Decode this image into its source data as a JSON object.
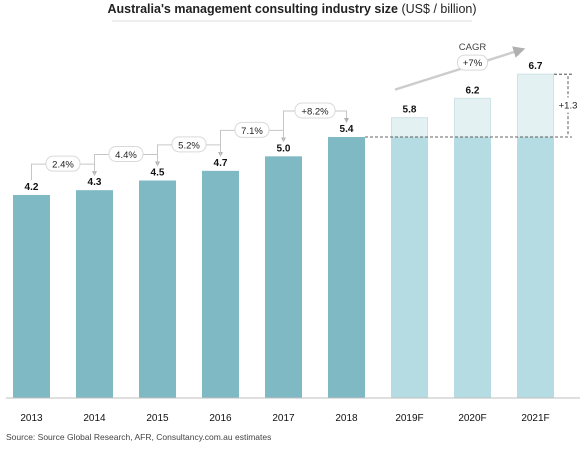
{
  "chart_data": {
    "type": "bar",
    "title_bold": "Australia's management consulting industry size",
    "title_unit": " (US$ / billion)",
    "categories": [
      "2013",
      "2014",
      "2015",
      "2016",
      "2017",
      "2018",
      "2019F",
      "2020F",
      "2021F"
    ],
    "values": [
      4.2,
      4.3,
      4.5,
      4.7,
      5.0,
      5.4,
      5.8,
      6.2,
      6.7
    ],
    "value_labels": [
      "4.2",
      "4.3",
      "4.5",
      "4.7",
      "5.0",
      "5.4",
      "5.8",
      "6.2",
      "6.7"
    ],
    "forecast_categories": [
      "2019F",
      "2020F",
      "2021F"
    ],
    "baseline_for_forecast": 5.4,
    "growth_annotations": [
      {
        "from": "2013",
        "to": "2014",
        "label": "2.4%"
      },
      {
        "from": "2014",
        "to": "2015",
        "label": "4.4%"
      },
      {
        "from": "2015",
        "to": "2016",
        "label": "5.2%"
      },
      {
        "from": "2016",
        "to": "2017",
        "label": "7.1%"
      },
      {
        "from": "2017",
        "to": "2018",
        "label": "+8.2%"
      }
    ],
    "cagr_label": "CAGR",
    "cagr_value": "+7%",
    "increase_label": "+1.3",
    "ylim": [
      0,
      7.2
    ],
    "grid": false,
    "legend": "none",
    "colors": {
      "actual": "#7fbac4",
      "forecast_base": "#b5dce2",
      "forecast_increment": "#e4f1f3",
      "forecast_increment_border": "#cfe3e7",
      "arrow": "#c6c6c6",
      "axis": "#bfbfbf"
    }
  },
  "source": "Source: Source Global Research, AFR, Consultancy.com.au estimates"
}
